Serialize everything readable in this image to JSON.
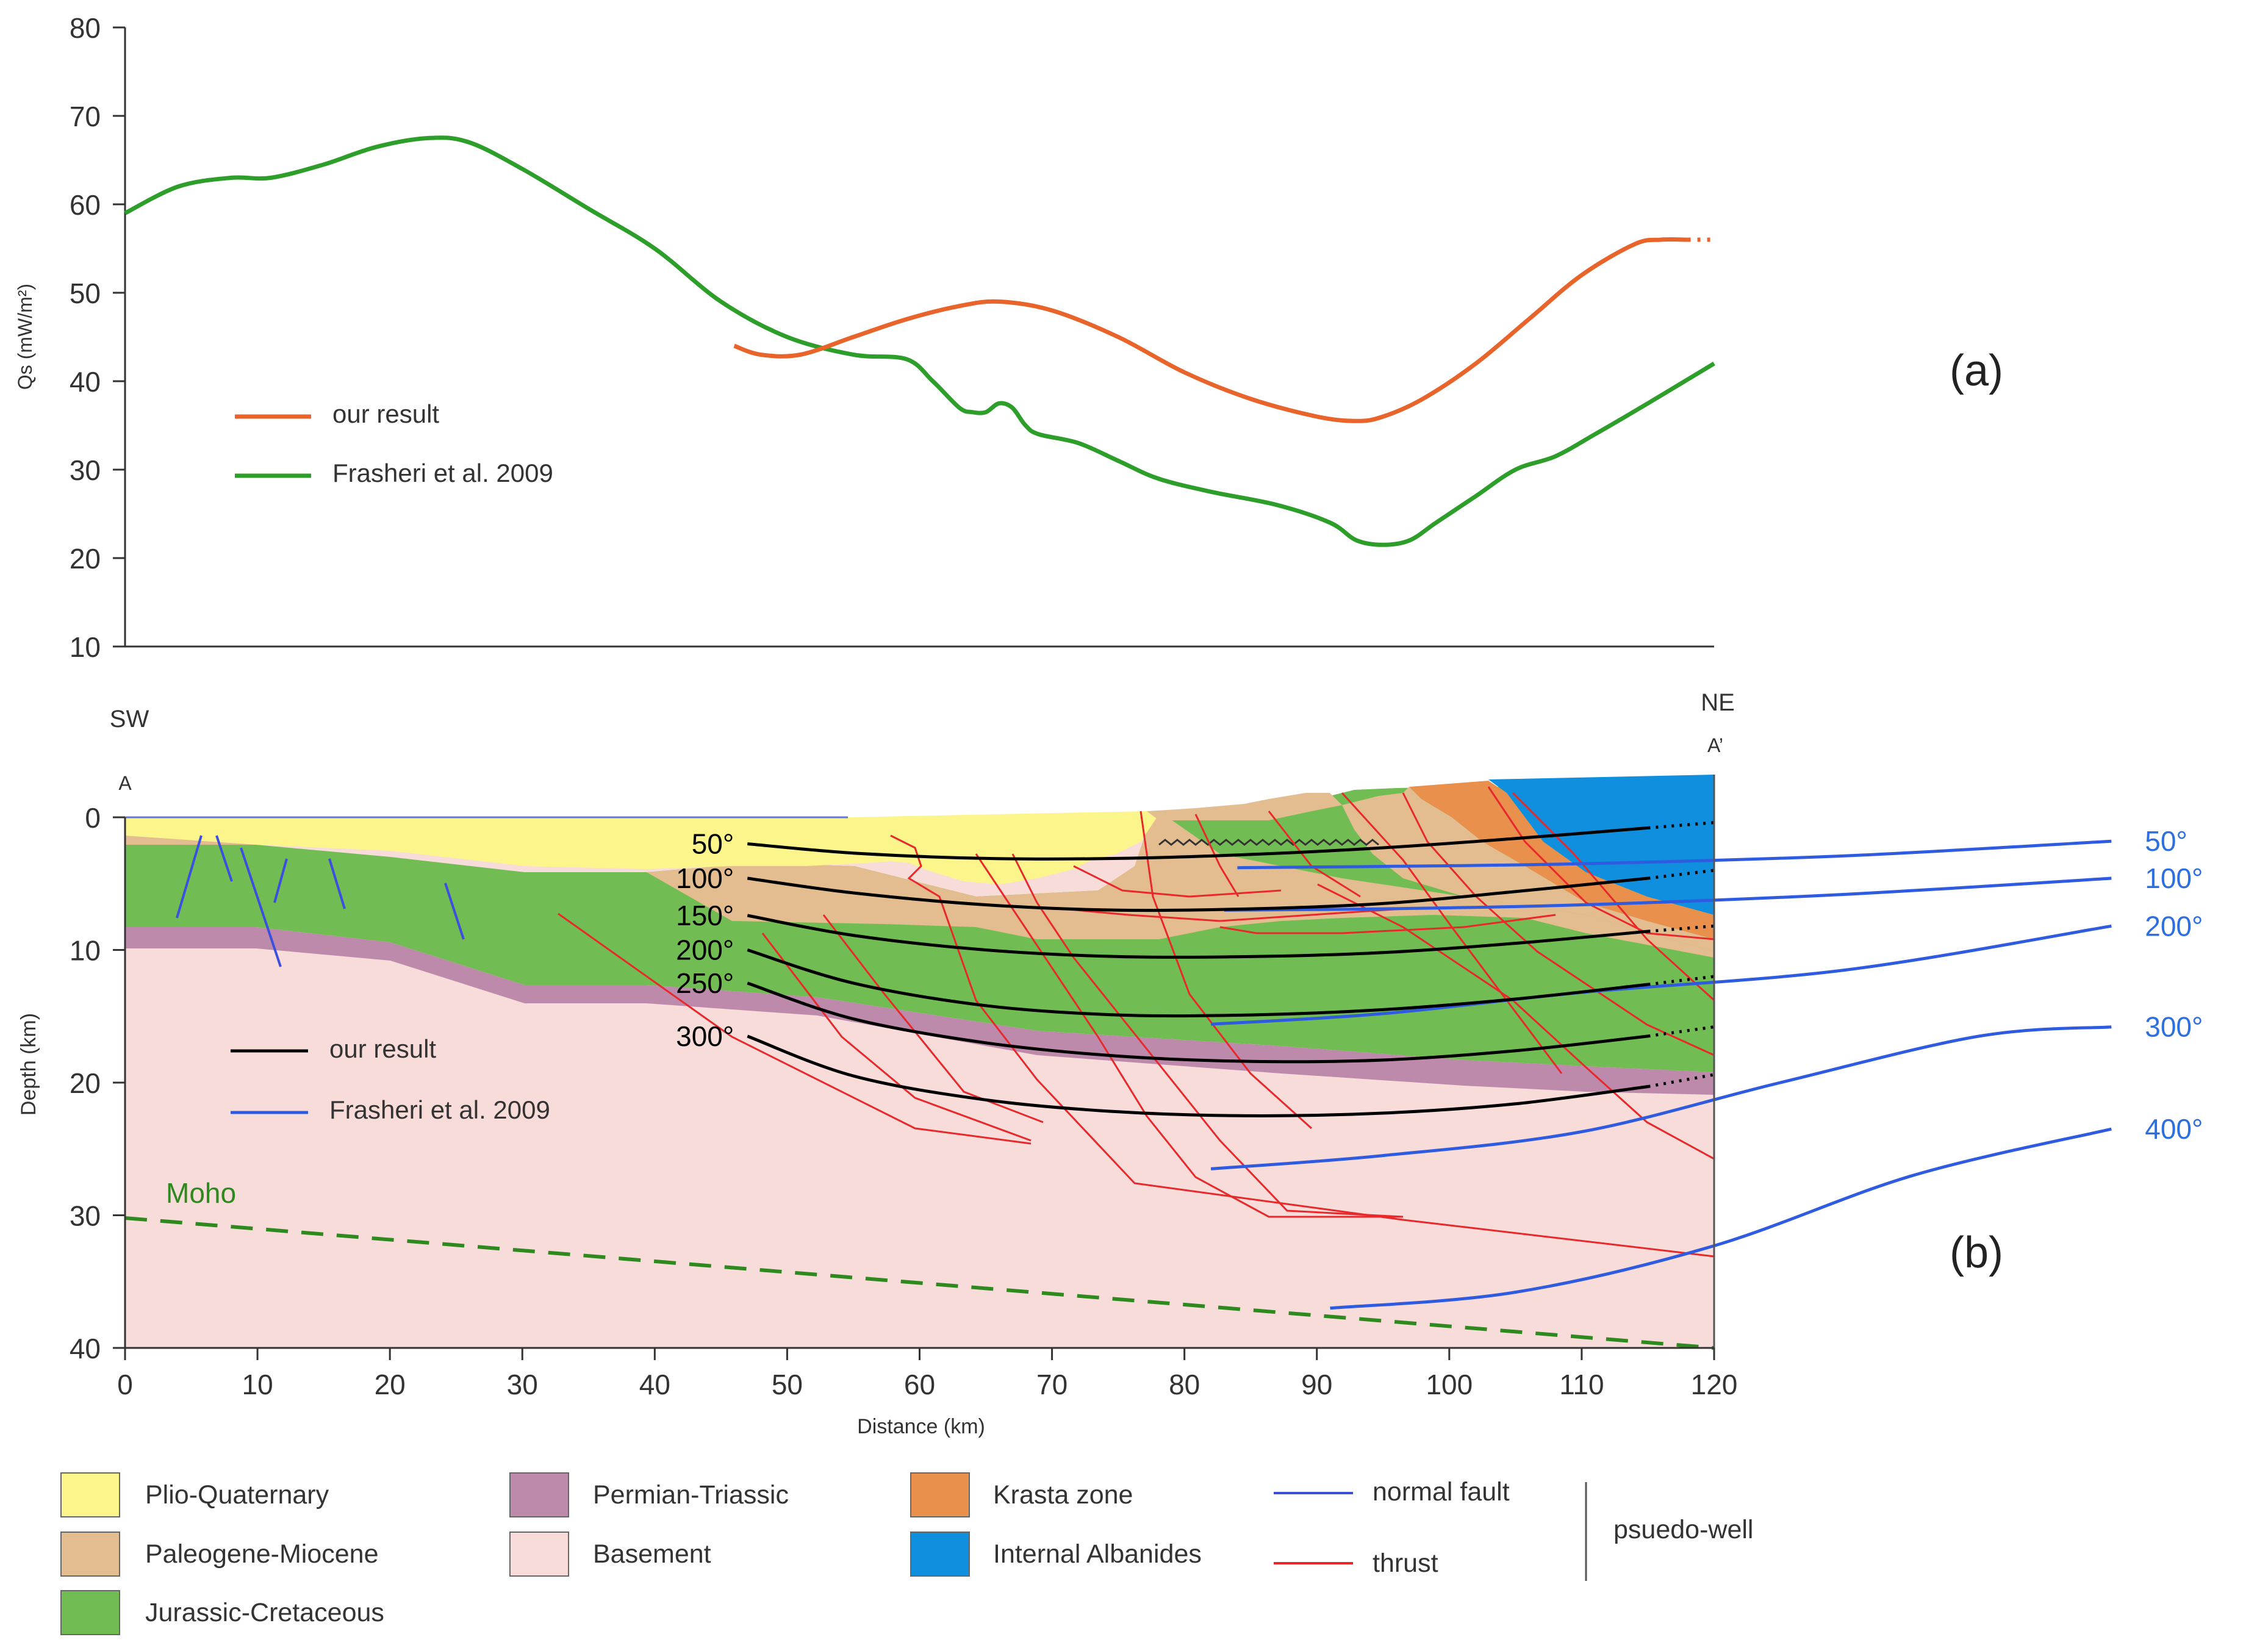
{
  "chart_data": [
    {
      "type": "line",
      "panel_label": "(a)",
      "ylabel": "Qs (mW/m²)",
      "ylim": [
        10,
        80
      ],
      "xlim": [
        0,
        120
      ],
      "y_ticks": [
        10,
        20,
        30,
        40,
        50,
        60,
        70,
        80
      ],
      "legend_position": "center-left",
      "series": [
        {
          "name": "our result",
          "color": "#e8642a",
          "x": [
            46,
            48,
            51,
            55,
            59,
            63,
            66,
            70,
            75,
            80,
            85,
            90,
            93,
            95,
            98,
            102,
            106,
            110,
            114,
            116,
            118
          ],
          "y": [
            44,
            43,
            43,
            45,
            47,
            48.5,
            49,
            48,
            45,
            41,
            38,
            36,
            35.5,
            36,
            38,
            42,
            47,
            52,
            55.5,
            56,
            56
          ],
          "dotted_tail_from_x": 118,
          "dotted_tail_to_x": 120
        },
        {
          "name": "Frasheri et al. 2009",
          "color": "#2e9e2a",
          "x": [
            0,
            4,
            8,
            11,
            15,
            19,
            23,
            26,
            30,
            35,
            40,
            45,
            50,
            55,
            59,
            61,
            63,
            64,
            65,
            66,
            67,
            68,
            69,
            72,
            75,
            78,
            82,
            87,
            91,
            93,
            95,
            97,
            99,
            102,
            105,
            108,
            111,
            115,
            120
          ],
          "y": [
            59,
            62,
            63,
            63,
            64.5,
            66.5,
            67.5,
            67,
            64,
            59.5,
            55,
            49,
            45,
            43,
            42.5,
            40,
            37,
            36.5,
            36.5,
            37.5,
            37,
            35,
            34,
            33,
            31,
            29,
            27.5,
            26,
            24,
            22,
            21.5,
            22,
            24,
            27,
            30,
            31.5,
            34,
            37.5,
            42
          ]
        }
      ]
    },
    {
      "type": "line",
      "panel_label": "(b)",
      "xlabel": "Distance (km)",
      "ylabel": "Depth (km)",
      "xlim": [
        0,
        120
      ],
      "ylim": [
        40,
        0
      ],
      "x_ticks": [
        0,
        10,
        20,
        30,
        40,
        50,
        60,
        70,
        80,
        90,
        100,
        110,
        120
      ],
      "y_ticks": [
        0,
        10,
        20,
        30,
        40
      ],
      "legend_position": "center-left",
      "labels": {
        "sw": "SW",
        "ne": "NE",
        "a": "A",
        "a_prime": "A’",
        "moho": "Moho"
      },
      "our_result_isotherms": [
        {
          "label": "50°",
          "x": [
            47,
            55,
            65,
            75,
            85,
            95,
            105,
            115,
            120
          ],
          "y": [
            2.0,
            2.7,
            3.1,
            3.1,
            2.8,
            2.3,
            1.6,
            0.8,
            0.4
          ]
        },
        {
          "label": "100°",
          "x": [
            47,
            55,
            65,
            75,
            85,
            95,
            105,
            115,
            120
          ],
          "y": [
            4.6,
            5.7,
            6.6,
            7.0,
            6.9,
            6.5,
            5.6,
            4.6,
            4.0
          ]
        },
        {
          "label": "150°",
          "x": [
            47,
            55,
            65,
            75,
            85,
            95,
            105,
            115,
            120
          ],
          "y": [
            7.4,
            8.9,
            10.0,
            10.5,
            10.5,
            10.2,
            9.5,
            8.6,
            8.2
          ]
        },
        {
          "label": "200°",
          "x": [
            47,
            55,
            65,
            75,
            85,
            95,
            105,
            115,
            120
          ],
          "y": [
            10.0,
            12.5,
            14.2,
            14.9,
            14.9,
            14.5,
            13.7,
            12.6,
            12.0
          ]
        },
        {
          "label": "250°",
          "x": [
            47,
            55,
            65,
            75,
            85,
            95,
            105,
            115,
            120
          ],
          "y": [
            12.5,
            15.2,
            17.0,
            18.0,
            18.4,
            18.3,
            17.6,
            16.5,
            15.8
          ]
        },
        {
          "label": "300°",
          "x": [
            47,
            55,
            65,
            75,
            85,
            95,
            105,
            115,
            120
          ],
          "y": [
            16.5,
            19.5,
            21.3,
            22.2,
            22.5,
            22.3,
            21.6,
            20.3,
            19.4
          ]
        }
      ],
      "frasheri_isotherms": [
        {
          "label": "50°",
          "x": [
            84,
            95,
            110,
            130,
            150
          ],
          "y": [
            3.8,
            3.7,
            3.5,
            2.9,
            1.8
          ]
        },
        {
          "label": "100°",
          "x": [
            83,
            95,
            110,
            130,
            150
          ],
          "y": [
            7.0,
            6.9,
            6.6,
            5.8,
            4.6
          ]
        },
        {
          "label": "200°",
          "x": [
            82,
            95,
            110,
            130,
            150
          ],
          "y": [
            15.6,
            14.8,
            13.2,
            11.5,
            8.2
          ]
        },
        {
          "label": "300°",
          "x": [
            82,
            95,
            110,
            125,
            140,
            150
          ],
          "y": [
            26.5,
            25.5,
            23.7,
            20.0,
            16.5,
            15.8
          ]
        },
        {
          "label": "400°",
          "x": [
            91,
            105,
            120,
            135,
            150
          ],
          "y": [
            37.0,
            35.8,
            32.3,
            27.0,
            23.5
          ]
        }
      ],
      "right_labels": {
        "our_result": [
          "50°",
          "100°",
          "150°",
          "200°",
          "250°",
          "300°"
        ],
        "frasheri": [
          "50°",
          "100°",
          "200°",
          "300°",
          "400°"
        ]
      },
      "legend": [
        {
          "label": "our result",
          "color": "#000000"
        },
        {
          "label": "Frasheri et al. 2009",
          "color": "#2e5be0"
        }
      ]
    }
  ],
  "units_legend": [
    {
      "label": "Plio-Quaternary",
      "color": "#fbf58c"
    },
    {
      "label": "Paleogene-Miocene",
      "color": "#e3bd8f"
    },
    {
      "label": "Jurassic-Cretaceous",
      "color": "#72bd53"
    },
    {
      "label": "Permian-Triassic",
      "color": "#bd8aac"
    },
    {
      "label": "Basement",
      "color": "#f8dcda"
    },
    {
      "label": "Krasta zone",
      "color": "#e9904d"
    },
    {
      "label": "Internal Albanides",
      "color": "#0f8fdd"
    }
  ],
  "line_legend": [
    {
      "label": "normal fault",
      "color": "#3c4fe0"
    },
    {
      "label": "thrust",
      "color": "#e8282a"
    }
  ],
  "psuedo_well_label": "psuedo-well",
  "colors": {
    "our_result_a": "#e8642a",
    "frasheri_a": "#2e9e2a",
    "frasheri_b": "#2e5be0",
    "moho": "#2e8a1e",
    "thrust": "#e8282a",
    "normal_fault": "#3c4fe0",
    "label_blue": "#2e6fe0"
  }
}
